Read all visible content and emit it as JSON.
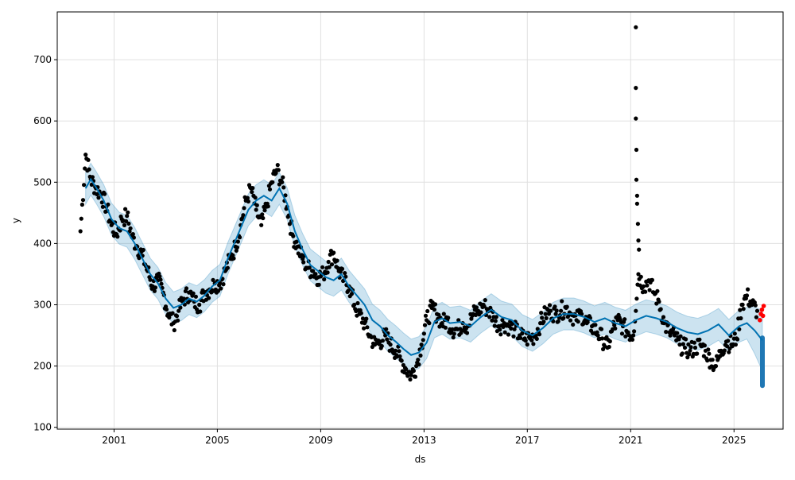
{
  "chart_data": {
    "type": "line",
    "title": "",
    "xlabel": "ds",
    "ylabel": "y",
    "xlim": [
      1998.8,
      2026.9
    ],
    "ylim": [
      97,
      778
    ],
    "grid": true,
    "x_ticks": [
      2001,
      2005,
      2009,
      2013,
      2017,
      2021,
      2025
    ],
    "x_tick_labels": [
      "2001",
      "2005",
      "2009",
      "2013",
      "2017",
      "2021",
      "2025"
    ],
    "y_ticks": [
      100,
      200,
      300,
      400,
      500,
      600,
      700
    ],
    "y_tick_labels": [
      "100",
      "200",
      "300",
      "400",
      "500",
      "600",
      "700"
    ],
    "colors": {
      "observed": "#000000",
      "forecast_line": "#0072B2",
      "uncertainty_band": "#0072B2",
      "forecast_points": "#1f77b4",
      "recent_points": "#ff0000",
      "grid": "#e0e0e0"
    },
    "forecast": {
      "x": [
        1999.9,
        2000.1,
        2000.3,
        2000.6,
        2000.9,
        2001.2,
        2001.5,
        2001.8,
        2002.1,
        2002.4,
        2002.7,
        2003.0,
        2003.3,
        2003.6,
        2003.9,
        2004.2,
        2004.5,
        2004.8,
        2005.1,
        2005.4,
        2005.7,
        2006.0,
        2006.2,
        2006.5,
        2006.8,
        2007.1,
        2007.4,
        2007.7,
        2008.0,
        2008.3,
        2008.6,
        2008.9,
        2009.2,
        2009.5,
        2009.8,
        2010.1,
        2010.4,
        2010.7,
        2011.0,
        2011.3,
        2011.6,
        2011.9,
        2012.2,
        2012.5,
        2012.8,
        2013.1,
        2013.4,
        2013.7,
        2014.0,
        2014.4,
        2014.8,
        2015.2,
        2015.6,
        2016.0,
        2016.4,
        2016.8,
        2017.2,
        2017.6,
        2018.0,
        2018.4,
        2018.8,
        2019.2,
        2019.6,
        2020.0,
        2020.4,
        2020.8,
        2021.2,
        2021.6,
        2022.0,
        2022.4,
        2022.8,
        2023.2,
        2023.6,
        2024.0,
        2024.4,
        2024.8,
        2025.2,
        2025.5,
        2025.8,
        2026.1
      ],
      "yhat": [
        490,
        505,
        492,
        470,
        440,
        425,
        420,
        400,
        375,
        350,
        335,
        310,
        295,
        300,
        310,
        305,
        315,
        330,
        340,
        375,
        405,
        435,
        455,
        470,
        478,
        470,
        490,
        465,
        420,
        390,
        365,
        355,
        345,
        340,
        350,
        330,
        315,
        300,
        275,
        265,
        250,
        240,
        228,
        218,
        222,
        238,
        272,
        278,
        270,
        272,
        265,
        280,
        292,
        280,
        275,
        258,
        250,
        262,
        278,
        285,
        285,
        280,
        272,
        278,
        270,
        265,
        275,
        282,
        278,
        272,
        262,
        255,
        252,
        258,
        268,
        250,
        265,
        270,
        258,
        242
      ],
      "band_width": 26
    },
    "observed_samples": {
      "x": [
        1999.7,
        1999.9,
        2000.1,
        2000.3,
        2000.5,
        2000.7,
        2000.9,
        2001.1,
        2001.3,
        2001.5,
        2001.7,
        2001.9,
        2002.1,
        2002.3,
        2002.5,
        2002.7,
        2002.9,
        2003.1,
        2003.3,
        2003.5,
        2003.7,
        2003.9,
        2004.1,
        2004.3,
        2004.5,
        2004.7,
        2004.9,
        2005.1,
        2005.3,
        2005.5,
        2005.7,
        2005.9,
        2006.1,
        2006.3,
        2006.5,
        2006.7,
        2006.9,
        2007.1,
        2007.3,
        2007.5,
        2007.7,
        2007.9,
        2008.1,
        2008.3,
        2008.5,
        2008.7,
        2008.9,
        2009.1,
        2009.3,
        2009.5,
        2009.7,
        2009.9,
        2010.1,
        2010.3,
        2010.5,
        2010.7,
        2010.9,
        2011.1,
        2011.3,
        2011.5,
        2011.7,
        2011.9,
        2012.1,
        2012.3,
        2012.5,
        2012.7,
        2012.9,
        2013.1,
        2013.3,
        2013.5,
        2013.7,
        2013.9,
        2014.1,
        2014.3,
        2014.5,
        2014.7,
        2014.9,
        2015.1,
        2015.3,
        2015.5,
        2015.7,
        2015.9,
        2016.1,
        2016.3,
        2016.5,
        2016.7,
        2016.9,
        2017.1,
        2017.3,
        2017.5,
        2017.7,
        2017.9,
        2018.1,
        2018.3,
        2018.5,
        2018.7,
        2018.9,
        2019.1,
        2019.3,
        2019.5,
        2019.7,
        2019.9,
        2020.1,
        2020.3,
        2020.5,
        2020.7,
        2020.9,
        2021.1,
        2021.3,
        2021.5,
        2021.7,
        2021.9,
        2022.1,
        2022.3,
        2022.5,
        2022.7,
        2022.9,
        2023.1,
        2023.3,
        2023.5,
        2023.7,
        2023.9,
        2024.1,
        2024.3,
        2024.5,
        2024.7,
        2024.9,
        2025.1,
        2025.3,
        2025.5,
        2025.7,
        2025.9
      ],
      "y": [
        420,
        545,
        505,
        490,
        480,
        460,
        430,
        415,
        440,
        445,
        410,
        395,
        380,
        355,
        330,
        340,
        320,
        285,
        270,
        290,
        310,
        320,
        305,
        300,
        320,
        325,
        335,
        335,
        355,
        375,
        395,
        430,
        470,
        490,
        455,
        430,
        460,
        500,
        520,
        500,
        460,
        415,
        395,
        375,
        360,
        355,
        345,
        350,
        370,
        385,
        355,
        340,
        330,
        300,
        285,
        270,
        250,
        235,
        240,
        250,
        235,
        225,
        210,
        195,
        185,
        200,
        235,
        275,
        295,
        285,
        270,
        275,
        260,
        260,
        270,
        265,
        285,
        290,
        300,
        290,
        280,
        265,
        270,
        265,
        260,
        250,
        245,
        245,
        250,
        270,
        285,
        290,
        285,
        290,
        295,
        285,
        275,
        285,
        270,
        265,
        255,
        245,
        230,
        260,
        275,
        265,
        255,
        250,
        350,
        330,
        340,
        320,
        305,
        270,
        255,
        250,
        235,
        230,
        225,
        230,
        235,
        225,
        210,
        200,
        225,
        240,
        235,
        245,
        300,
        315,
        300,
        290
      ]
    },
    "recent_points": {
      "x": [
        2026.0,
        2026.04,
        2026.08,
        2026.12,
        2026.15
      ],
      "y": [
        275,
        285,
        292,
        282,
        298
      ]
    },
    "spike_points": {
      "x": [
        2021.2,
        2021.2,
        2021.2,
        2021.22,
        2021.22,
        2021.25,
        2021.25,
        2021.28,
        2021.3,
        2021.32
      ],
      "y": [
        753,
        654,
        604,
        553,
        504,
        478,
        465,
        432,
        405,
        390
      ]
    },
    "forecast_points": {
      "x": 2026.1,
      "y_range": [
        168,
        246
      ]
    }
  }
}
